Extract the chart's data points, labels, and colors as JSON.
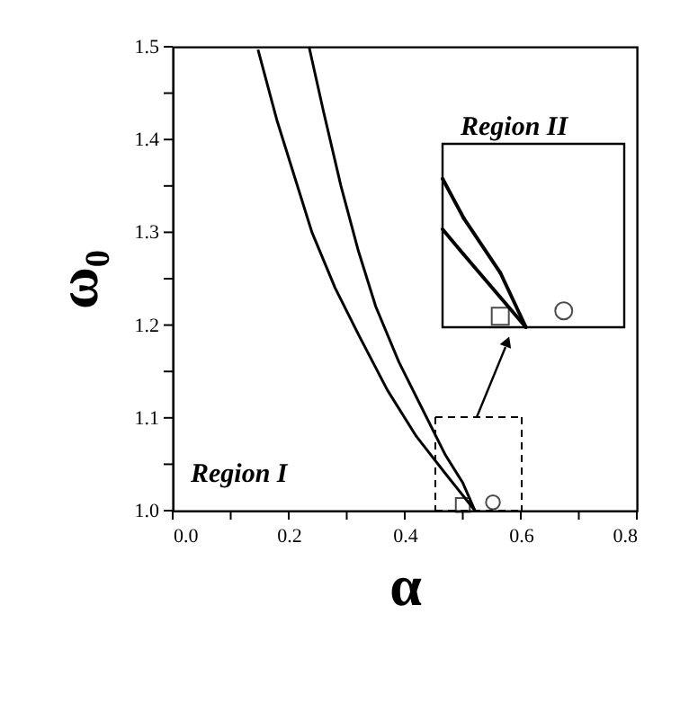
{
  "chart_data": {
    "type": "line",
    "xlabel": "α",
    "ylabel": "ω₀",
    "annotations": [
      "Region I",
      "Region II"
    ],
    "xlim": [
      0.0,
      0.8
    ],
    "ylim": [
      1.0,
      1.5
    ],
    "xticks": [
      {
        "value": 0.0,
        "label": "0.0"
      },
      {
        "value": 0.1,
        "label": null
      },
      {
        "value": 0.2,
        "label": "0.2"
      },
      {
        "value": 0.3,
        "label": null
      },
      {
        "value": 0.4,
        "label": "0.4"
      },
      {
        "value": 0.5,
        "label": null
      },
      {
        "value": 0.6,
        "label": "0.6"
      },
      {
        "value": 0.7,
        "label": null
      },
      {
        "value": 0.8,
        "label": "0.8"
      }
    ],
    "yticks": [
      {
        "value": 1.0,
        "label": "1.0"
      },
      {
        "value": 1.05,
        "label": null
      },
      {
        "value": 1.1,
        "label": "1.1"
      },
      {
        "value": 1.15,
        "label": null
      },
      {
        "value": 1.2,
        "label": "1.2"
      },
      {
        "value": 1.25,
        "label": null
      },
      {
        "value": 1.3,
        "label": "1.3"
      },
      {
        "value": 1.35,
        "label": null
      },
      {
        "value": 1.4,
        "label": "1.4"
      },
      {
        "value": 1.45,
        "label": null
      },
      {
        "value": 1.5,
        "label": "1.5"
      }
    ],
    "line_style": "solid",
    "marker": "none",
    "series": [
      {
        "color": "#000000",
        "x": [
          0.147,
          0.18,
          0.21,
          0.24,
          0.28,
          0.32,
          0.37,
          0.42,
          0.47,
          0.521
        ],
        "values": [
          1.497,
          1.42,
          1.36,
          1.3,
          1.24,
          1.19,
          1.13,
          1.08,
          1.04,
          1.0
        ]
      },
      {
        "color": "#000000",
        "x": [
          0.235,
          0.26,
          0.29,
          0.32,
          0.35,
          0.39,
          0.43,
          0.47,
          0.5,
          0.521
        ],
        "values": [
          1.5,
          1.43,
          1.35,
          1.28,
          1.22,
          1.16,
          1.11,
          1.06,
          1.03,
          1.0
        ]
      },
      {
        "type": "scatter",
        "color": "#000000",
        "marker": "square",
        "x": [
          0.5
        ],
        "values": [
          1.006
        ]
      },
      {
        "type": "scatter",
        "color": "#000000",
        "marker": "circle",
        "x": [
          0.552
        ],
        "values": [
          1.009
        ]
      }
    ]
  }
}
